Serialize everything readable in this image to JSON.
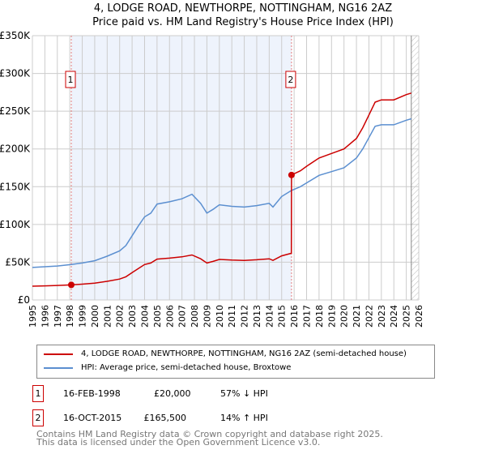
{
  "chart_data": {
    "type": "line",
    "title": "4, LODGE ROAD, NEWTHORPE, NOTTINGHAM, NG16 2AZ",
    "subtitle": "Price paid vs. HM Land Registry's House Price Index (HPI)",
    "xlim": [
      1995,
      2026
    ],
    "ylim": [
      0,
      350000
    ],
    "yticks": [
      0,
      50000,
      100000,
      150000,
      200000,
      250000,
      300000,
      350000
    ],
    "ytick_labels": [
      "£0",
      "£50K",
      "£100K",
      "£150K",
      "£200K",
      "£250K",
      "£300K",
      "£350K"
    ],
    "xticks": [
      1995,
      1996,
      1997,
      1998,
      1999,
      2000,
      2001,
      2002,
      2003,
      2004,
      2005,
      2006,
      2007,
      2008,
      2009,
      2010,
      2011,
      2012,
      2013,
      2014,
      2015,
      2016,
      2017,
      2018,
      2019,
      2020,
      2021,
      2022,
      2023,
      2024,
      2025,
      2026
    ],
    "grid": true,
    "shaded_range": [
      1998.12,
      2015.79
    ],
    "hatched_from": 2025.4,
    "series": [
      {
        "name": "4, LODGE ROAD, NEWTHORPE, NOTTINGHAM, NG16 2AZ (semi-detached house)",
        "color": "#cc0000",
        "x": [
          1995,
          1996,
          1997,
          1998.12,
          1999,
          2000,
          2001,
          2002,
          2002.5,
          2003,
          2003.5,
          2004,
          2004.5,
          2005,
          2006,
          2007,
          2007.8,
          2008.5,
          2009,
          2009.5,
          2010,
          2011,
          2012,
          2013,
          2014,
          2014.3,
          2015,
          2015.78,
          2015.79,
          2016.5,
          2017,
          2018,
          2019,
          2020,
          2021,
          2021.5,
          2022,
          2022.5,
          2023,
          2024,
          2025,
          2025.4
        ],
        "y": [
          18300,
          18700,
          19200,
          20000,
          20900,
          22200,
          24700,
          27700,
          30700,
          36200,
          41700,
          46900,
          49000,
          54100,
          55400,
          57100,
          59600,
          54500,
          49000,
          51100,
          53700,
          52800,
          52400,
          53300,
          54500,
          52400,
          58400,
          61800,
          165500,
          171000,
          177000,
          188000,
          194000,
          200000,
          214000,
          228000,
          245000,
          262000,
          265000,
          265000,
          272000,
          274000
        ]
      },
      {
        "name": "HPI: Average price, semi-detached house, Broxtowe",
        "color": "#5b8fd0",
        "x": [
          1995,
          1996,
          1997,
          1998.12,
          1999,
          2000,
          2001,
          2002,
          2002.5,
          2003,
          2003.5,
          2004,
          2004.5,
          2005,
          2006,
          2007,
          2007.8,
          2008.5,
          2009,
          2009.5,
          2010,
          2011,
          2012,
          2013,
          2014,
          2014.3,
          2015,
          2015.79,
          2016.5,
          2017,
          2018,
          2019,
          2020,
          2021,
          2021.5,
          2022,
          2022.5,
          2023,
          2024,
          2025,
          2025.4
        ],
        "y": [
          43000,
          44000,
          45000,
          47000,
          49000,
          52000,
          58000,
          65000,
          72000,
          85000,
          98000,
          110000,
          115000,
          127000,
          130000,
          134000,
          140000,
          128000,
          115000,
          120000,
          126000,
          124000,
          123000,
          125000,
          128000,
          123000,
          137000,
          145000,
          150000,
          155000,
          165000,
          170000,
          175000,
          188000,
          200000,
          215000,
          230000,
          232000,
          232000,
          238000,
          240000
        ]
      }
    ],
    "markers": [
      {
        "label": "1",
        "x": 1998.12,
        "y": 20000
      },
      {
        "label": "2",
        "x": 2015.79,
        "y": 165500
      }
    ]
  },
  "legend": {
    "property": "4, LODGE ROAD, NEWTHORPE, NOTTINGHAM, NG16 2AZ (semi-detached house)",
    "hpi": "HPI: Average price, semi-detached house, Broxtowe"
  },
  "transactions": [
    {
      "id": "1",
      "date": "16-FEB-1998",
      "price": "£20,000",
      "hpi": "57% ↓ HPI"
    },
    {
      "id": "2",
      "date": "16-OCT-2015",
      "price": "£165,500",
      "hpi": "14% ↑ HPI"
    }
  ],
  "footer": {
    "line1": "Contains HM Land Registry data © Crown copyright and database right 2025.",
    "line2": "This data is licensed under the Open Government Licence v3.0."
  }
}
